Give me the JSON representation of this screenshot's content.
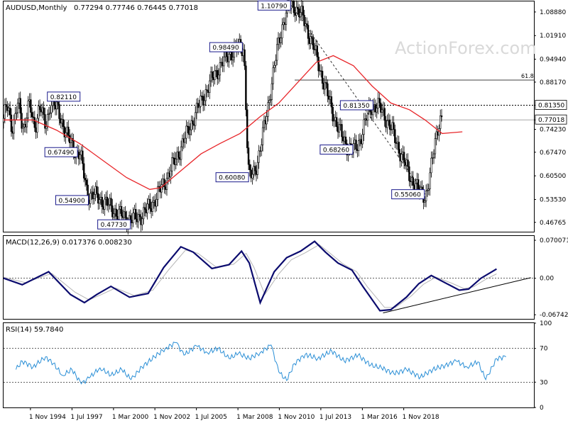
{
  "header": {
    "symbol": "AUDUSD,Monthly",
    "ohlc": "0.77294 0.77746 0.76445 0.77018"
  },
  "watermark": "ActionForex.com",
  "colors": {
    "candle": "#000000",
    "ma": "#e8262a",
    "macd": "#0b0b6e",
    "signal": "#b5b5b5",
    "rsi": "#2b8fd6",
    "label_border": "#1a1a8c",
    "grid": "#000000"
  },
  "chart_data": [
    {
      "type": "candlestick",
      "panel": "price",
      "title": "AUDUSD,Monthly",
      "ylim": [
        0.44,
        1.12
      ],
      "y_ticks": [
        "1.08880",
        "1.01910",
        "0.94940",
        "0.88170",
        "0.81350",
        "0.77018",
        "0.74230",
        "0.67470",
        "0.60500",
        "0.53530",
        "0.46765"
      ],
      "tick_values": [
        1.0888,
        1.0191,
        0.9494,
        0.8817,
        0.8135,
        0.77018,
        0.7423,
        0.6747,
        0.605,
        0.5353,
        0.46765
      ],
      "price_tag_current": "0.77018",
      "price_tag_level": "0.81350",
      "fib_label": "61.8",
      "fib_level": 0.8877,
      "dotted_level": 0.8135,
      "current_price": 0.77018,
      "x_labels": [
        "1 Nov 1994",
        "1 Jul 1997",
        "1 Mar 2000",
        "1 Nov 2002",
        "1 Jul 2005",
        "1 Mar 2008",
        "1 Nov 2010",
        "1 Jul 2013",
        "1 Mar 2016",
        "1 Nov 2018"
      ],
      "swing_points": [
        {
          "t": 1996.1,
          "v": 0.8211
        },
        {
          "t": 1997.9,
          "v": 0.6749
        },
        {
          "t": 1998.6,
          "v": 0.549
        },
        {
          "t": 2001.3,
          "v": 0.4773
        },
        {
          "t": 2008.5,
          "v": 0.9849
        },
        {
          "t": 2008.9,
          "v": 0.6008
        },
        {
          "t": 2011.6,
          "v": 1.1079
        },
        {
          "t": 2015.6,
          "v": 0.6826
        },
        {
          "t": 2016.9,
          "v": 0.8135
        },
        {
          "t": 2020.2,
          "v": 0.5506
        },
        {
          "t": 2021.2,
          "v": 0.77
        }
      ],
      "annotations": [
        {
          "text": "0.82110",
          "t": 1996.1,
          "v": 0.8211,
          "anchor": "left",
          "pos": "above"
        },
        {
          "text": "0.67490",
          "t": 1997.9,
          "v": 0.6749,
          "anchor": "right",
          "pos": "at"
        },
        {
          "text": "0.54900",
          "t": 1998.6,
          "v": 0.549,
          "anchor": "right",
          "pos": "below"
        },
        {
          "text": "0.47730",
          "t": 2001.3,
          "v": 0.4773,
          "anchor": "right",
          "pos": "below"
        },
        {
          "text": "0.98490",
          "t": 2008.5,
          "v": 0.9849,
          "anchor": "right",
          "pos": "at"
        },
        {
          "text": "0.60080",
          "t": 2008.9,
          "v": 0.6008,
          "anchor": "right",
          "pos": "at"
        },
        {
          "text": "1.10790",
          "t": 2011.6,
          "v": 1.1079,
          "anchor": "right",
          "pos": "at"
        },
        {
          "text": "0.68260",
          "t": 2015.6,
          "v": 0.6826,
          "anchor": "right",
          "pos": "at"
        },
        {
          "text": "0.81350",
          "t": 2016.9,
          "v": 0.8135,
          "anchor": "right",
          "pos": "at"
        },
        {
          "text": "0.55060",
          "t": 2020.2,
          "v": 0.5506,
          "anchor": "right",
          "pos": "at"
        }
      ],
      "ma_points": [
        {
          "t": 1993.1,
          "v": 0.77
        },
        {
          "t": 1995.0,
          "v": 0.77
        },
        {
          "t": 1996.5,
          "v": 0.74
        },
        {
          "t": 1998.0,
          "v": 0.7
        },
        {
          "t": 1999.5,
          "v": 0.65
        },
        {
          "t": 2001.0,
          "v": 0.6
        },
        {
          "t": 2002.5,
          "v": 0.565
        },
        {
          "t": 2003.2,
          "v": 0.57
        },
        {
          "t": 2004.5,
          "v": 0.62
        },
        {
          "t": 2005.8,
          "v": 0.67
        },
        {
          "t": 2007.0,
          "v": 0.7
        },
        {
          "t": 2008.3,
          "v": 0.73
        },
        {
          "t": 2009.6,
          "v": 0.78
        },
        {
          "t": 2010.8,
          "v": 0.82
        },
        {
          "t": 2012.0,
          "v": 0.88
        },
        {
          "t": 2013.2,
          "v": 0.94
        },
        {
          "t": 2014.3,
          "v": 0.96
        },
        {
          "t": 2015.6,
          "v": 0.93
        },
        {
          "t": 2016.8,
          "v": 0.87
        },
        {
          "t": 2018.0,
          "v": 0.82
        },
        {
          "t": 2019.2,
          "v": 0.8
        },
        {
          "t": 2020.2,
          "v": 0.77
        },
        {
          "t": 2021.3,
          "v": 0.73
        },
        {
          "t": 2022.6,
          "v": 0.735
        }
      ],
      "trendline": {
        "from": {
          "t": 2011.6,
          "v": 1.1079
        },
        "to": {
          "t": 2020.2,
          "v": 0.5506
        }
      }
    },
    {
      "type": "line",
      "panel": "macd",
      "title": "MACD(12,26,9) 0.017376 0.008230",
      "ylim": [
        -0.075,
        0.078
      ],
      "y_ticks": [
        "0.070071",
        "0.00",
        "-0.067423"
      ],
      "tick_values": [
        0.070071,
        0,
        -0.067423
      ],
      "series": [
        {
          "name": "MACD",
          "points": [
            {
              "t": 1993.1,
              "v": 0.0
            },
            {
              "t": 1994.3,
              "v": -0.012
            },
            {
              "t": 1996.0,
              "v": 0.012
            },
            {
              "t": 1997.4,
              "v": -0.03
            },
            {
              "t": 1998.3,
              "v": -0.045
            },
            {
              "t": 1999.1,
              "v": -0.03
            },
            {
              "t": 2000.0,
              "v": -0.015
            },
            {
              "t": 2001.2,
              "v": -0.035
            },
            {
              "t": 2002.4,
              "v": -0.028
            },
            {
              "t": 2003.4,
              "v": 0.02
            },
            {
              "t": 2004.5,
              "v": 0.058
            },
            {
              "t": 2005.3,
              "v": 0.048
            },
            {
              "t": 2006.5,
              "v": 0.018
            },
            {
              "t": 2007.6,
              "v": 0.025
            },
            {
              "t": 2008.4,
              "v": 0.05
            },
            {
              "t": 2008.9,
              "v": 0.028
            },
            {
              "t": 2009.6,
              "v": -0.045
            },
            {
              "t": 2010.5,
              "v": 0.012
            },
            {
              "t": 2011.3,
              "v": 0.038
            },
            {
              "t": 2012.2,
              "v": 0.05
            },
            {
              "t": 2013.1,
              "v": 0.068
            },
            {
              "t": 2013.8,
              "v": 0.048
            },
            {
              "t": 2014.6,
              "v": 0.028
            },
            {
              "t": 2015.5,
              "v": 0.015
            },
            {
              "t": 2016.2,
              "v": -0.015
            },
            {
              "t": 2017.3,
              "v": -0.06
            },
            {
              "t": 2018.0,
              "v": -0.058
            },
            {
              "t": 2019.0,
              "v": -0.035
            },
            {
              "t": 2019.8,
              "v": -0.01
            },
            {
              "t": 2020.6,
              "v": 0.005
            },
            {
              "t": 2021.6,
              "v": -0.01
            },
            {
              "t": 2022.4,
              "v": -0.022
            },
            {
              "t": 2023.0,
              "v": -0.02
            },
            {
              "t": 2023.8,
              "v": 0.0
            },
            {
              "t": 2024.8,
              "v": 0.017
            }
          ]
        },
        {
          "name": "Signal",
          "points": [
            {
              "t": 1993.1,
              "v": 0.002
            },
            {
              "t": 1994.5,
              "v": -0.008
            },
            {
              "t": 1996.2,
              "v": 0.009
            },
            {
              "t": 1997.7,
              "v": -0.026
            },
            {
              "t": 1998.6,
              "v": -0.04
            },
            {
              "t": 1999.4,
              "v": -0.03
            },
            {
              "t": 2000.3,
              "v": -0.018
            },
            {
              "t": 2001.5,
              "v": -0.032
            },
            {
              "t": 2002.7,
              "v": -0.022
            },
            {
              "t": 2003.7,
              "v": 0.015
            },
            {
              "t": 2004.8,
              "v": 0.052
            },
            {
              "t": 2005.6,
              "v": 0.046
            },
            {
              "t": 2006.8,
              "v": 0.02
            },
            {
              "t": 2007.9,
              "v": 0.026
            },
            {
              "t": 2008.7,
              "v": 0.046
            },
            {
              "t": 2009.2,
              "v": 0.02
            },
            {
              "t": 2009.9,
              "v": -0.03
            },
            {
              "t": 2010.8,
              "v": 0.008
            },
            {
              "t": 2011.6,
              "v": 0.034
            },
            {
              "t": 2012.5,
              "v": 0.047
            },
            {
              "t": 2013.4,
              "v": 0.062
            },
            {
              "t": 2014.1,
              "v": 0.046
            },
            {
              "t": 2014.9,
              "v": 0.027
            },
            {
              "t": 2015.8,
              "v": 0.012
            },
            {
              "t": 2016.5,
              "v": -0.016
            },
            {
              "t": 2017.6,
              "v": -0.054
            },
            {
              "t": 2018.3,
              "v": -0.054
            },
            {
              "t": 2019.3,
              "v": -0.033
            },
            {
              "t": 2020.1,
              "v": -0.011
            },
            {
              "t": 2020.9,
              "v": 0.002
            },
            {
              "t": 2021.9,
              "v": -0.009
            },
            {
              "t": 2022.7,
              "v": -0.019
            },
            {
              "t": 2023.3,
              "v": -0.016
            },
            {
              "t": 2024.1,
              "v": -0.002
            },
            {
              "t": 2024.8,
              "v": 0.008
            }
          ]
        }
      ],
      "zero_line": 0,
      "trendline": {
        "from": {
          "t": 2017.5,
          "v": -0.064
        },
        "to": {
          "t": 2027.0,
          "v": 0.001
        }
      }
    },
    {
      "type": "line",
      "panel": "rsi",
      "title": "RSI(14) 59.7840",
      "ylim": [
        0,
        100
      ],
      "y_ticks": [
        "100",
        "70",
        "30",
        "0"
      ],
      "tick_values": [
        100,
        70,
        30,
        0
      ],
      "levels": [
        70,
        30
      ],
      "series": [
        {
          "name": "RSI",
          "points": [
            {
              "t": 1993.9,
              "v": 45
            },
            {
              "t": 1994.3,
              "v": 55
            },
            {
              "t": 1995.0,
              "v": 48
            },
            {
              "t": 1995.8,
              "v": 60
            },
            {
              "t": 1996.3,
              "v": 52
            },
            {
              "t": 1996.9,
              "v": 38
            },
            {
              "t": 1997.5,
              "v": 45
            },
            {
              "t": 1998.1,
              "v": 28
            },
            {
              "t": 1998.6,
              "v": 35
            },
            {
              "t": 1999.3,
              "v": 47
            },
            {
              "t": 2000.0,
              "v": 38
            },
            {
              "t": 2000.7,
              "v": 45
            },
            {
              "t": 2001.3,
              "v": 33
            },
            {
              "t": 2002.0,
              "v": 48
            },
            {
              "t": 2002.8,
              "v": 60
            },
            {
              "t": 2003.5,
              "v": 70
            },
            {
              "t": 2004.2,
              "v": 77
            },
            {
              "t": 2004.7,
              "v": 62
            },
            {
              "t": 2005.5,
              "v": 73
            },
            {
              "t": 2006.2,
              "v": 65
            },
            {
              "t": 2006.9,
              "v": 70
            },
            {
              "t": 2007.6,
              "v": 58
            },
            {
              "t": 2008.2,
              "v": 64
            },
            {
              "t": 2008.9,
              "v": 58
            },
            {
              "t": 2009.6,
              "v": 65
            },
            {
              "t": 2010.3,
              "v": 74
            },
            {
              "t": 2010.8,
              "v": 42
            },
            {
              "t": 2011.3,
              "v": 32
            },
            {
              "t": 2011.8,
              "v": 52
            },
            {
              "t": 2012.5,
              "v": 63
            },
            {
              "t": 2013.3,
              "v": 58
            },
            {
              "t": 2014.2,
              "v": 67
            },
            {
              "t": 2015.0,
              "v": 55
            },
            {
              "t": 2015.9,
              "v": 62
            },
            {
              "t": 2016.7,
              "v": 50
            },
            {
              "t": 2017.4,
              "v": 47
            },
            {
              "t": 2018.2,
              "v": 40
            },
            {
              "t": 2019.0,
              "v": 45
            },
            {
              "t": 2019.9,
              "v": 36
            },
            {
              "t": 2020.7,
              "v": 45
            },
            {
              "t": 2021.5,
              "v": 50
            },
            {
              "t": 2022.2,
              "v": 55
            },
            {
              "t": 2022.9,
              "v": 48
            },
            {
              "t": 2023.6,
              "v": 54
            },
            {
              "t": 2024.1,
              "v": 33
            },
            {
              "t": 2024.8,
              "v": 58
            },
            {
              "t": 2025.4,
              "v": 60
            }
          ]
        }
      ]
    }
  ]
}
